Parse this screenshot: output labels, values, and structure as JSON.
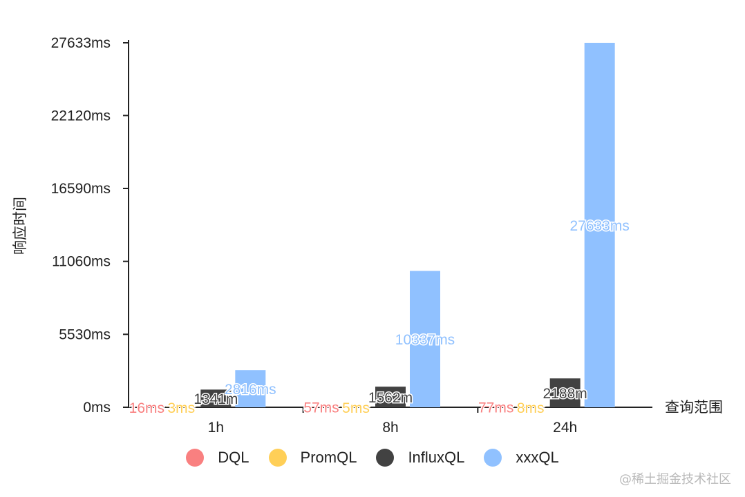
{
  "chart_data": {
    "type": "bar",
    "categories": [
      "1h",
      "8h",
      "24h"
    ],
    "series": [
      {
        "name": "DQL",
        "color": "#f98080",
        "values": [
          16,
          57,
          77
        ],
        "labels": [
          "16ms",
          "57ms",
          "77ms"
        ]
      },
      {
        "name": "PromQL",
        "color": "#ffcf57",
        "values": [
          3,
          5,
          8
        ],
        "labels": [
          "3ms",
          "5ms",
          "8ms"
        ]
      },
      {
        "name": "InfluxQL",
        "color": "#424242",
        "values": [
          1341,
          1562,
          2188
        ],
        "labels": [
          "1341m",
          "1562m",
          "2188m"
        ]
      },
      {
        "name": "xxxQL",
        "color": "#90c1ff",
        "values": [
          2816,
          10337,
          27633
        ],
        "labels": [
          "2816ms",
          "10337ms",
          "27633ms"
        ]
      }
    ],
    "yticks": [
      "0ms",
      "5530ms",
      "11060ms",
      "16590ms",
      "22120ms",
      "27633ms"
    ],
    "ytick_values": [
      0,
      5530,
      11060,
      16590,
      22120,
      27633
    ],
    "ylim": [
      0,
      27633
    ],
    "xlabel": "查询范围",
    "ylabel": "响应时间",
    "legend_position": "bottom",
    "grid": false
  },
  "watermark": "@稀土掘金技术社区"
}
